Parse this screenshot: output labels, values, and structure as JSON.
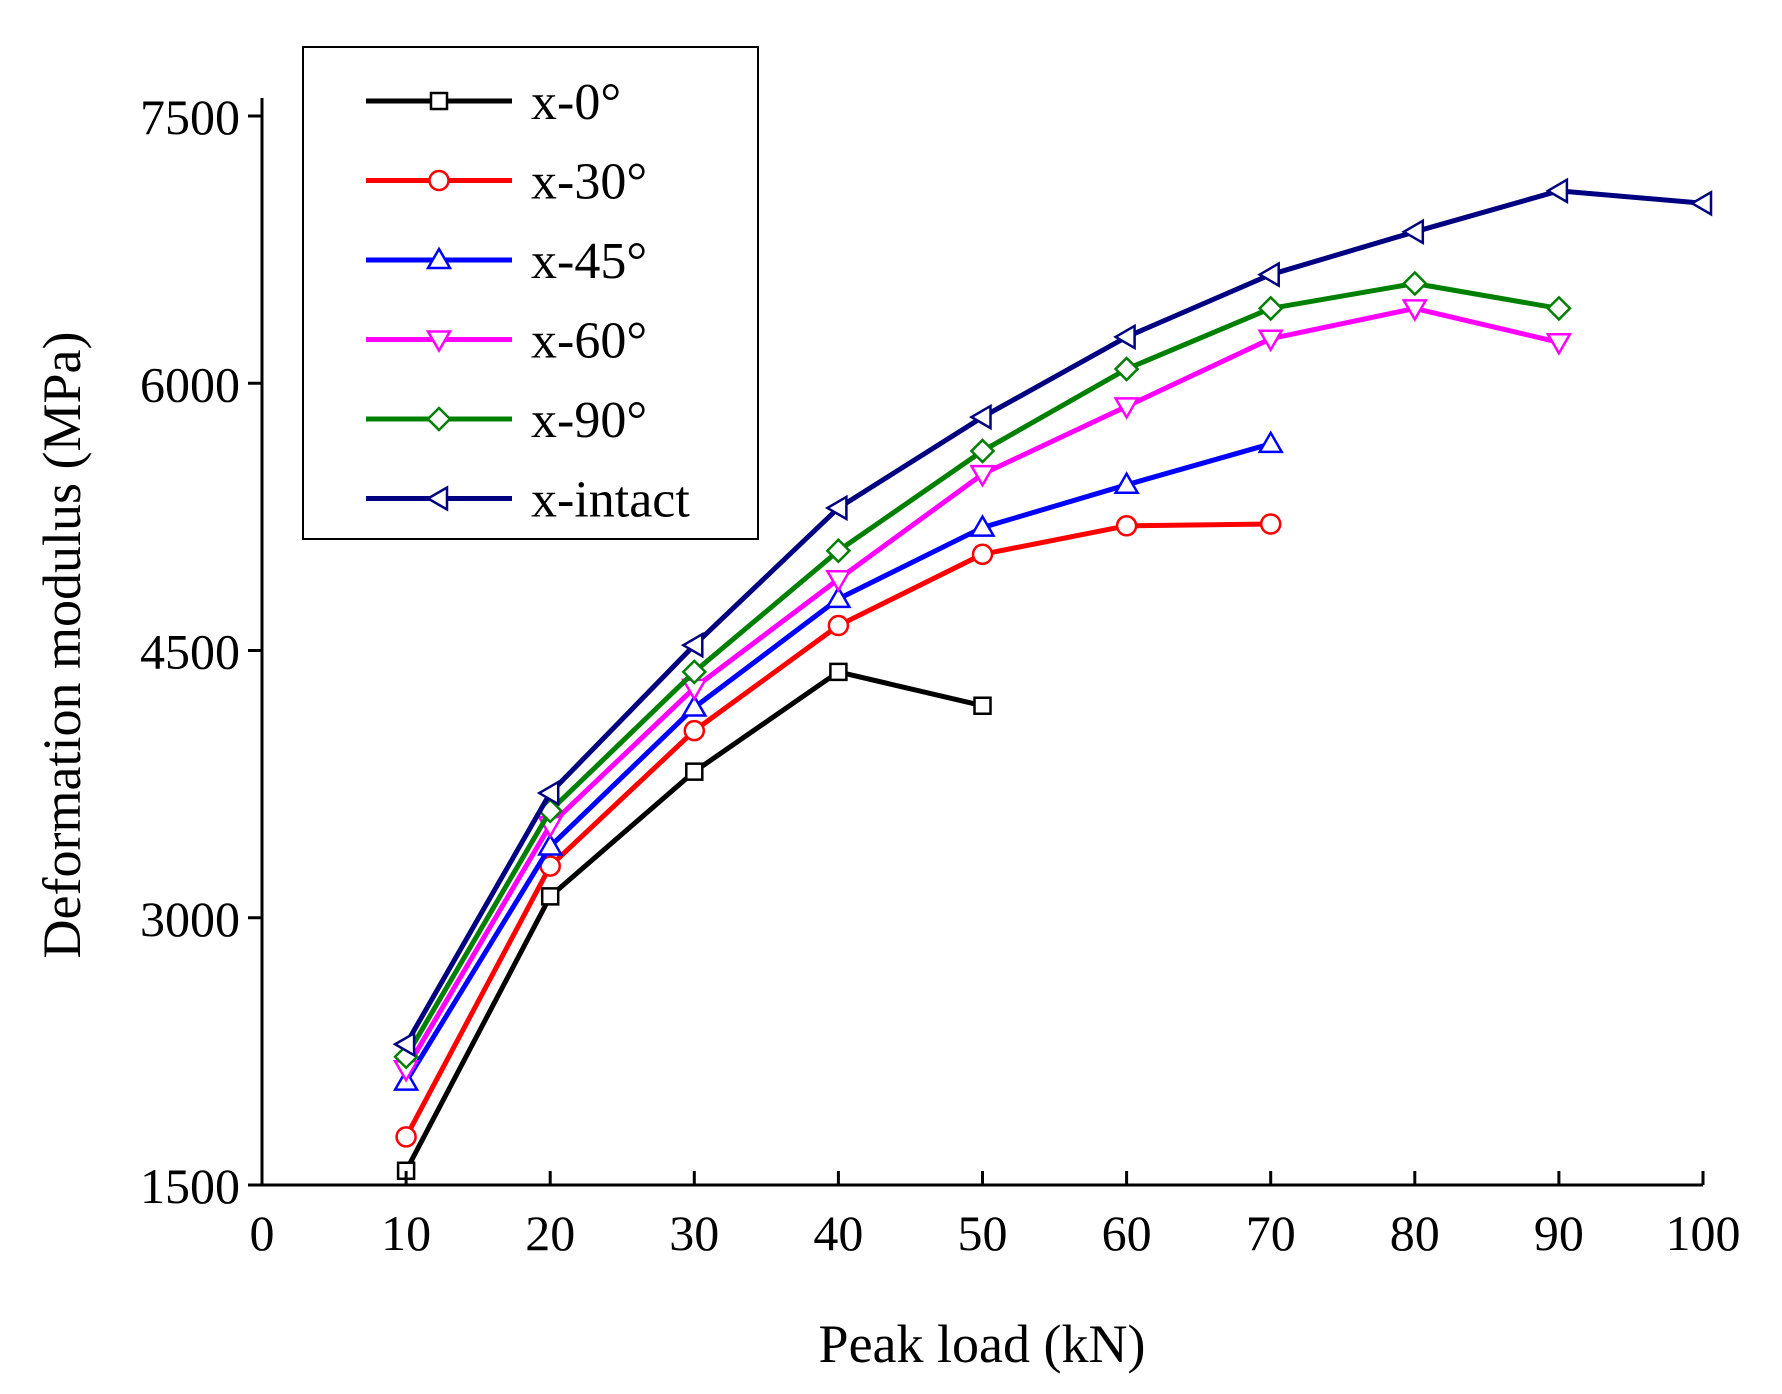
{
  "chart_data": {
    "type": "line",
    "title": "",
    "xlabel": "Peak load (kN)",
    "ylabel": "Deformation modulus (MPa)",
    "xlim": [
      0,
      100
    ],
    "ylim": [
      1500,
      7500
    ],
    "xticks": [
      0,
      10,
      20,
      30,
      40,
      50,
      60,
      70,
      80,
      90,
      100
    ],
    "xtick_labels": [
      "0",
      "10",
      "20",
      "30",
      "40",
      "50",
      "60",
      "70",
      "80",
      "90",
      "100"
    ],
    "yticks": [
      1500,
      3000,
      4500,
      6000,
      7500
    ],
    "ytick_labels": [
      "1500",
      "3000",
      "4500",
      "6000",
      "7500"
    ],
    "grid": false,
    "legend_position": "top-left",
    "series": [
      {
        "name": "x-0°",
        "color": "#000000",
        "marker": "square",
        "x": [
          10,
          20,
          30,
          40,
          50
        ],
        "y": [
          1580,
          3120,
          3820,
          4380,
          4190
        ]
      },
      {
        "name": "x-30°",
        "color": "#ff0000",
        "marker": "circle",
        "x": [
          10,
          20,
          30,
          40,
          50,
          60,
          70
        ],
        "y": [
          1770,
          3290,
          4050,
          4640,
          5040,
          5200,
          5210
        ]
      },
      {
        "name": "x-45°",
        "color": "#0000ff",
        "marker": "triangle-up",
        "x": [
          10,
          20,
          30,
          40,
          50,
          60,
          70
        ],
        "y": [
          2080,
          3400,
          4180,
          4790,
          5190,
          5430,
          5660
        ]
      },
      {
        "name": "x-60°",
        "color": "#ff00ff",
        "marker": "triangle-down",
        "x": [
          10,
          20,
          30,
          40,
          50,
          60,
          70,
          80,
          90
        ],
        "y": [
          2150,
          3520,
          4290,
          4900,
          5490,
          5870,
          6250,
          6420,
          6230
        ]
      },
      {
        "name": "x-90°",
        "color": "#008000",
        "marker": "diamond",
        "x": [
          10,
          20,
          30,
          40,
          50,
          60,
          70,
          80,
          90
        ],
        "y": [
          2220,
          3600,
          4380,
          5060,
          5620,
          6080,
          6420,
          6560,
          6420
        ]
      },
      {
        "name": "x-intact",
        "color": "#000080",
        "marker": "triangle-left",
        "x": [
          10,
          20,
          30,
          40,
          50,
          60,
          70,
          80,
          90,
          100
        ],
        "y": [
          2290,
          3700,
          4530,
          5300,
          5810,
          6260,
          6610,
          6850,
          7080,
          7010
        ]
      }
    ]
  }
}
